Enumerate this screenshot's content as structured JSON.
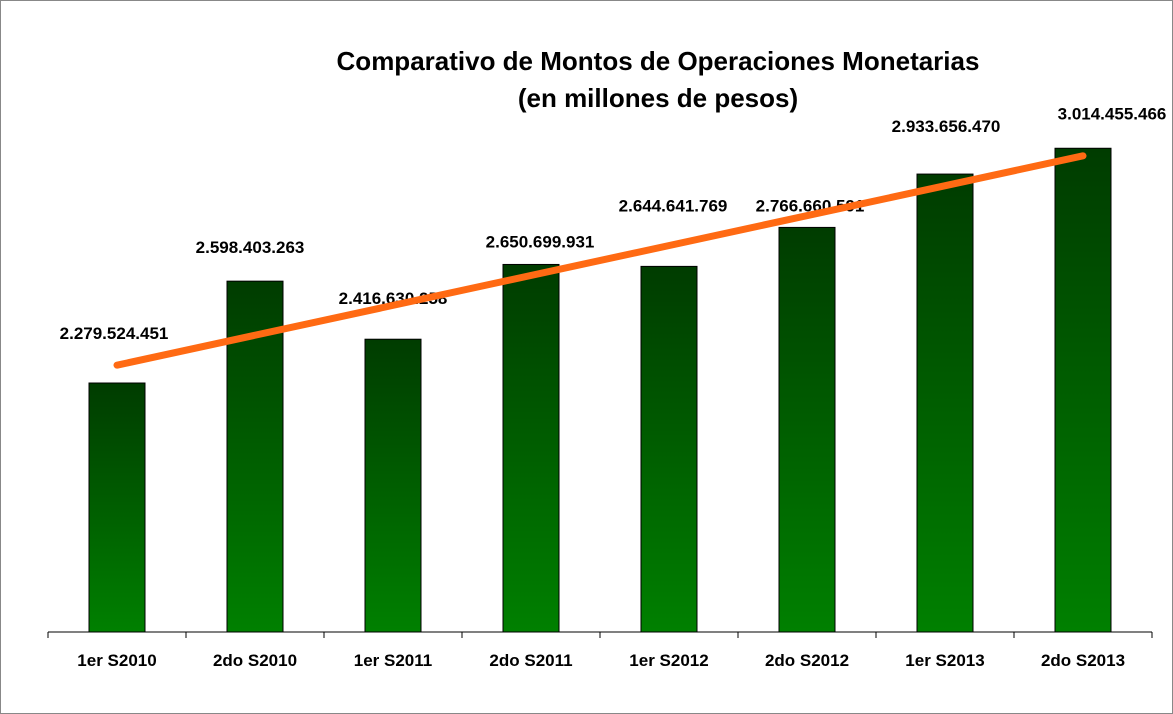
{
  "chart_data": {
    "type": "bar",
    "title": "Comparativo de Montos de Operaciones Monetarias",
    "subtitle": "(en millones de pesos)",
    "categories": [
      "1er S2010",
      "2do S2010",
      "1er S2011",
      "2do S2011",
      "1er S2012",
      "2do S2012",
      "1er S2013",
      "2do S2013"
    ],
    "values": [
      2279524451,
      2598403263,
      2416630258,
      2650699931,
      2644641769,
      2766660591,
      2933656470,
      3014455466
    ],
    "value_labels": [
      "2.279.524.451",
      "2.598.403.263",
      "2.416.630.258",
      "2.650.699.931",
      "2.644.641.769",
      "2.766.660.591",
      "2.933.656.470",
      "3.014.455.466"
    ],
    "color": "#008000",
    "trendline": {
      "type": "linear",
      "color": "#ff6a13"
    },
    "ylim": [
      1500000000,
      3200000000
    ]
  }
}
